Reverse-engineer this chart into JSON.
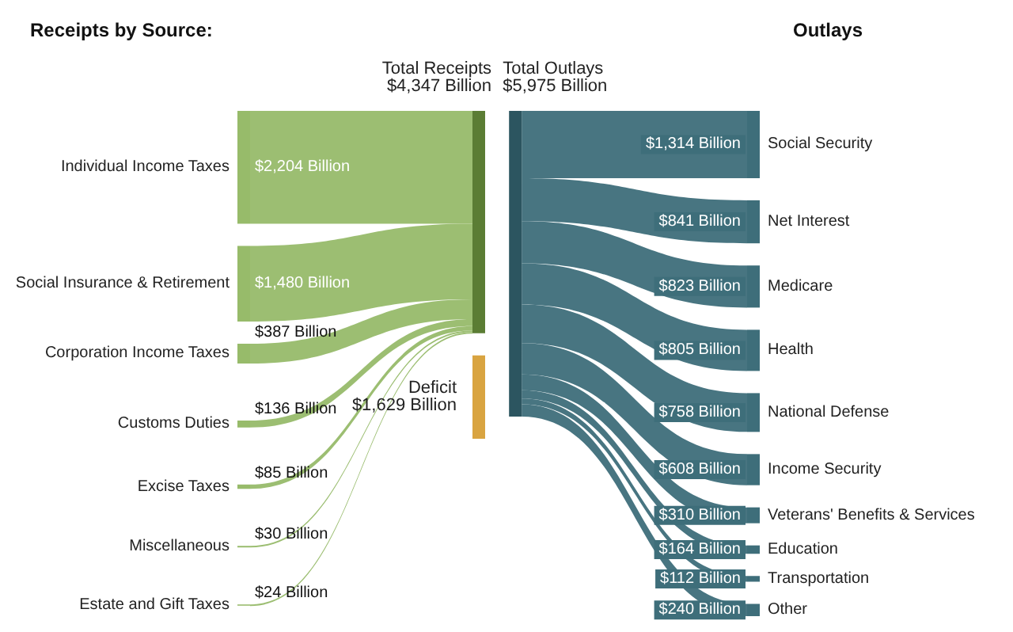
{
  "chart_data": {
    "type": "other",
    "title": "Receipts by Source:",
    "categories": [
      "Individual Income Taxes",
      "Social Insurance & Retirement",
      "Corporation Income Taxes",
      "Customs Duties",
      "Excise Taxes",
      "Miscellaneous",
      "Estate and Gift Taxes",
      "Deficit",
      "Social Security",
      "Net Interest",
      "Medicare",
      "Health",
      "National Defense",
      "Income Security",
      "Veterans' Benefits & Services",
      "Education",
      "Transportation",
      "Other"
    ],
    "values": [
      2204,
      1480,
      387,
      136,
      85,
      30,
      24,
      1629,
      1314,
      841,
      823,
      805,
      758,
      608,
      310,
      164,
      112,
      240
    ],
    "value_labels": [
      "$2,204 Billion",
      "$1,480 Billion",
      "$387 Billion",
      "$136 Billion",
      "$85 Billion",
      "$30 Billion",
      "$24 Billion",
      "$1,629 Billion",
      "$1,314 Billion",
      "$841 Billion",
      "$823 Billion",
      "$805 Billion",
      "$758 Billion",
      "$608 Billion",
      "$310 Billion",
      "$164 Billion",
      "$112 Billion",
      "$240 Billion"
    ],
    "colors": [
      "#97bb6a",
      "#97bb6a",
      "#97bb6a",
      "#97bb6a",
      "#97bb6a",
      "#97bb6a",
      "#97bb6a",
      "#d9a441",
      "#3e6e7a",
      "#3e6e7a",
      "#3e6e7a",
      "#3e6e7a",
      "#3e6e7a",
      "#3e6e7a",
      "#3e6e7a",
      "#3e6e7a",
      "#3e6e7a",
      "#3e6e7a"
    ],
    "annotations": [
      "Outlays",
      "Total Receipts\n$4,347 Billion",
      "Total Outlays\n$5,975 Billion"
    ]
  }
}
